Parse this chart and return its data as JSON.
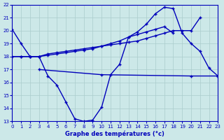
{
  "bg_color": "#cce8e8",
  "line_color": "#0000bb",
  "xlim": [
    0,
    23
  ],
  "ylim": [
    13,
    22
  ],
  "yticks": [
    13,
    14,
    15,
    16,
    17,
    18,
    19,
    20,
    21,
    22
  ],
  "xticks": [
    0,
    1,
    2,
    3,
    4,
    5,
    6,
    7,
    8,
    9,
    10,
    11,
    12,
    13,
    14,
    15,
    16,
    17,
    18,
    19,
    20,
    21,
    22,
    23
  ],
  "xlabel": "Graphe des températures (°c)",
  "line1_x": [
    0,
    1,
    2,
    3,
    4,
    5,
    6,
    7,
    8,
    9,
    10,
    11,
    12,
    13,
    14,
    15,
    16,
    17,
    18,
    19,
    20,
    21,
    22,
    23
  ],
  "line1_y": [
    20.1,
    19.0,
    18.0,
    18.0,
    16.5,
    15.8,
    14.5,
    13.2,
    13.0,
    13.1,
    14.1,
    16.6,
    17.4,
    19.5,
    19.9,
    20.5,
    21.3,
    21.8,
    21.7,
    19.8,
    19.0,
    18.4,
    17.1,
    16.5
  ],
  "line2_x": [
    0,
    1,
    2,
    3,
    4,
    5,
    6,
    7,
    8,
    9,
    10,
    11,
    12,
    13,
    14,
    15,
    16,
    17,
    18,
    19,
    20,
    21,
    22,
    23
  ],
  "line2_y": [
    18.0,
    18.0,
    18.0,
    18.0,
    18.2,
    18.3,
    18.4,
    18.5,
    18.6,
    18.7,
    18.8,
    18.9,
    19.0,
    19.1,
    19.2,
    19.4,
    19.6,
    19.8,
    20.0,
    20.0,
    20.0,
    21.0,
    null,
    null
  ],
  "line3_x": [
    0,
    1,
    2,
    3,
    4,
    5,
    6,
    7,
    8,
    9,
    10,
    11,
    12,
    13,
    14,
    15,
    16,
    17,
    18
  ],
  "line3_y": [
    18.0,
    18.0,
    18.0,
    18.0,
    18.1,
    18.2,
    18.3,
    18.4,
    18.5,
    18.6,
    18.8,
    19.0,
    19.2,
    19.5,
    19.7,
    19.9,
    20.1,
    20.3,
    19.8
  ],
  "line4_x": [
    3,
    10,
    20,
    23
  ],
  "line4_y": [
    17.0,
    16.6,
    16.5,
    16.5
  ]
}
